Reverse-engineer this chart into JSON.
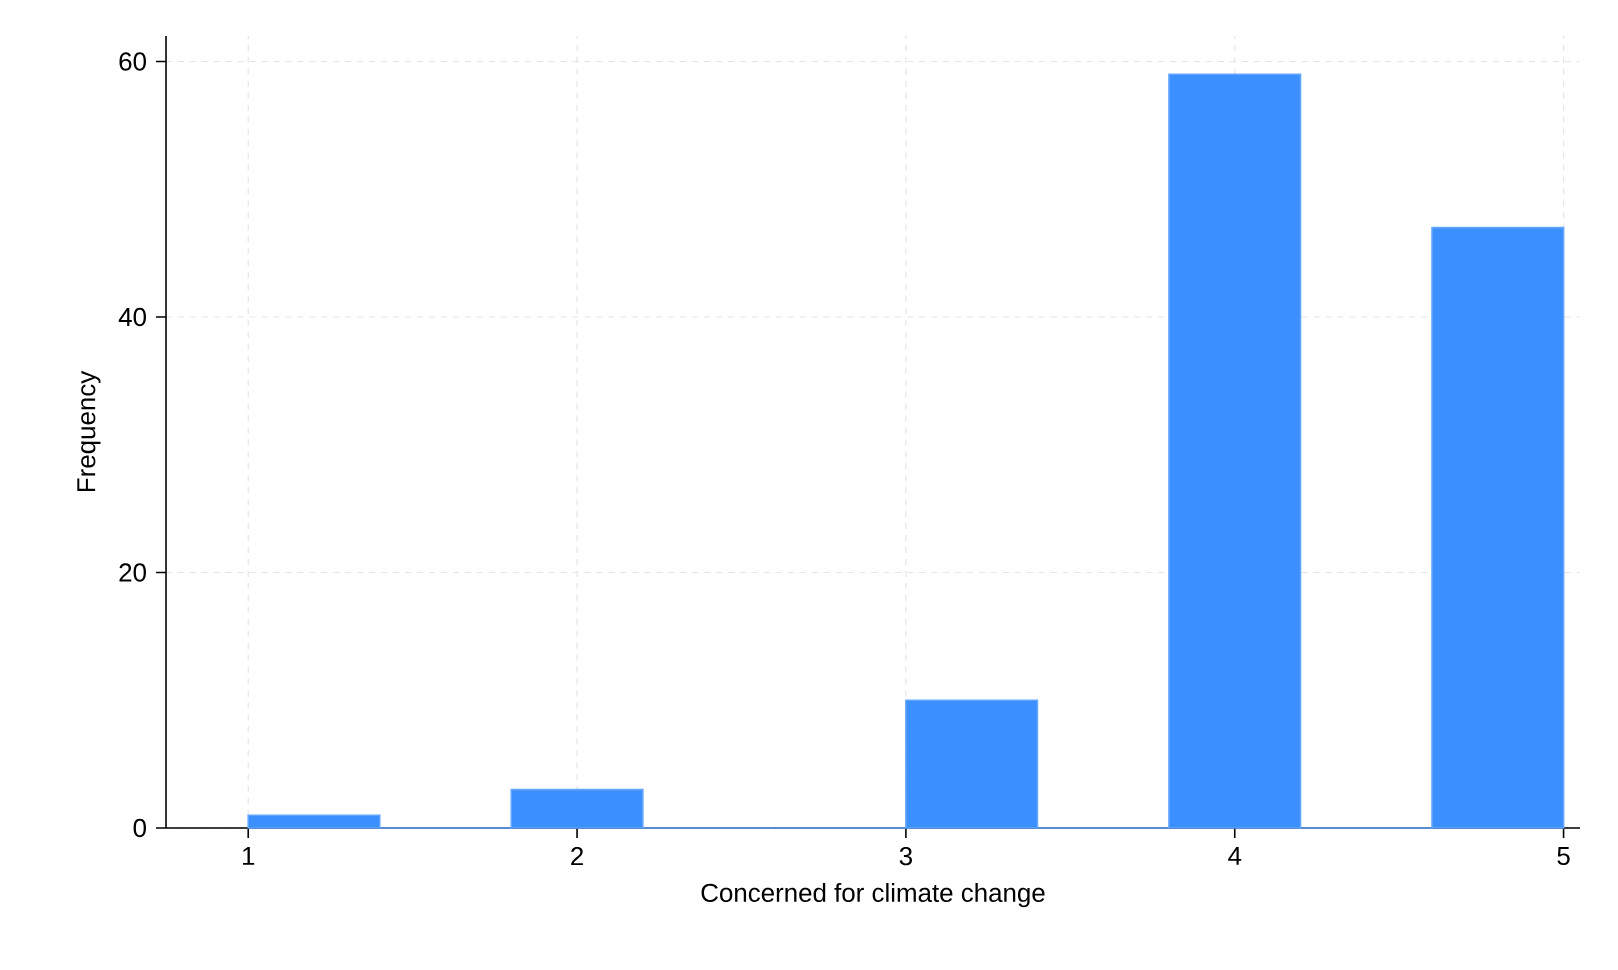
{
  "chart_data": {
    "type": "histogram",
    "xlabel": "Concerned for climate change",
    "ylabel": "Frequency",
    "bins": [
      1,
      1.4,
      1.8,
      2.2,
      2.6,
      3.0,
      3.4,
      3.8,
      4.2,
      4.6,
      5.0
    ],
    "values": [
      1,
      0,
      3,
      0,
      0,
      10,
      0,
      59,
      0,
      47
    ],
    "color": "#3b8fff",
    "xlim": [
      0.75,
      5.05
    ],
    "ylim": [
      0,
      62
    ],
    "xticks": [
      1,
      2,
      3,
      4,
      5
    ],
    "yticks": [
      0,
      20,
      40,
      60
    ],
    "grid": true
  }
}
